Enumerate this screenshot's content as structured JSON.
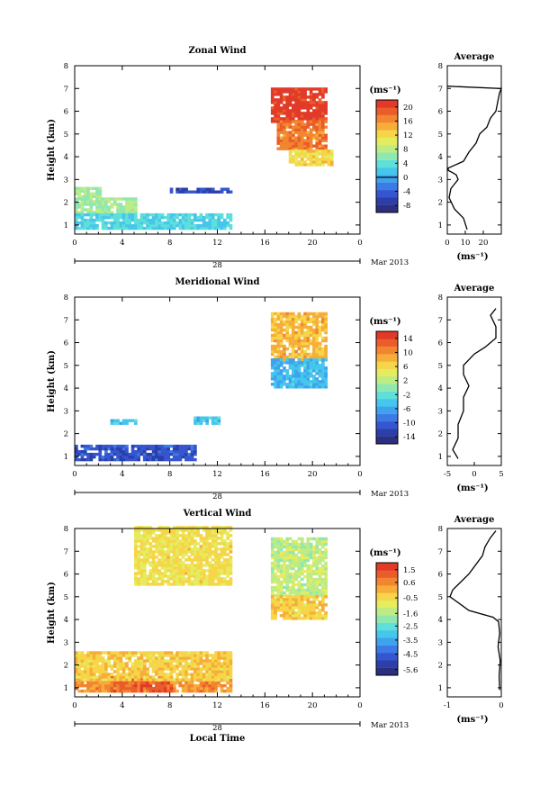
{
  "x_axis_label": "Local Time",
  "date_day": "28",
  "date_month": "Mar 2013",
  "time_ticks": [
    0,
    4,
    8,
    12,
    16,
    20,
    0
  ],
  "height_label": "Height (km)",
  "panels": [
    {
      "title": "Zonal Wind",
      "unit": "(ms⁻¹)",
      "colorbar": {
        "labels": [
          "20",
          "16",
          "12",
          "8",
          "4",
          "0",
          "-4",
          "-8"
        ],
        "min": -10,
        "max": 22,
        "zero_line": true
      },
      "average": {
        "title": "Average",
        "unit": "(ms⁻¹)",
        "xticks": [
          "0",
          "10",
          "20"
        ],
        "xlim": [
          0,
          30
        ]
      }
    },
    {
      "title": "Meridional Wind",
      "unit": "(ms⁻¹)",
      "colorbar": {
        "labels": [
          "14",
          "10",
          "6",
          "2",
          "-2",
          "-6",
          "-10",
          "-14"
        ],
        "min": -16,
        "max": 16,
        "zero_line": true
      },
      "average": {
        "title": "Average",
        "unit": "(ms⁻¹)",
        "xticks": [
          "-5",
          "0",
          "5"
        ],
        "xlim": [
          -5,
          5
        ]
      }
    },
    {
      "title": "Vertical Wind",
      "unit": "(ms⁻¹)",
      "colorbar": {
        "labels": [
          "1.5",
          "0.6",
          "-0.5",
          "-1.6",
          "-2.5",
          "-3.5",
          "-4.5",
          "-5.6"
        ],
        "min": -6,
        "max": 2,
        "zero_line": false
      },
      "average": {
        "title": "Average",
        "unit": "(ms⁻¹)",
        "xticks": [
          "-1",
          "0"
        ],
        "xlim": [
          -1,
          0
        ]
      }
    }
  ],
  "chart_data": [
    {
      "type": "heatmap",
      "title": "Zonal Wind",
      "xlabel": "",
      "ylabel": "Height (km)",
      "xlim": [
        0,
        24
      ],
      "ylim": [
        0.6,
        8
      ],
      "colorbar_range": [
        -10,
        22
      ],
      "regions": [
        {
          "t": [
            0,
            2
          ],
          "h": [
            2.2,
            2.6
          ],
          "v": 7
        },
        {
          "t": [
            0,
            5
          ],
          "h": [
            1.5,
            2.2
          ],
          "v": 7
        },
        {
          "t": [
            0,
            13
          ],
          "h": [
            0.8,
            1.5
          ],
          "v": 3
        },
        {
          "t": [
            8,
            13
          ],
          "h": [
            2.4,
            2.6
          ],
          "v": -6
        },
        {
          "t": [
            16.5,
            21
          ],
          "h": [
            5.5,
            7
          ],
          "v": 21
        },
        {
          "t": [
            17,
            21
          ],
          "h": [
            4.3,
            5.5
          ],
          "v": 17
        },
        {
          "t": [
            18,
            21.5
          ],
          "h": [
            3.6,
            4.3
          ],
          "v": 12
        }
      ]
    },
    {
      "type": "line",
      "title": "Average",
      "xlabel": "(ms⁻¹)",
      "ylabel": "",
      "xlim": [
        0,
        30
      ],
      "ylim": [
        0.6,
        8
      ],
      "x": [
        11,
        9,
        4,
        1,
        2,
        4,
        6,
        5,
        3,
        0.5,
        0.5,
        9,
        12,
        16,
        18,
        22,
        24,
        27,
        28,
        29,
        30,
        0
      ],
      "y": [
        0.8,
        1.3,
        1.7,
        2.2,
        2.6,
        2.8,
        3.0,
        3.2,
        3.3,
        3.4,
        3.5,
        3.8,
        4.2,
        4.6,
        5.0,
        5.3,
        5.7,
        6.0,
        6.4,
        6.8,
        7.0,
        7.1
      ]
    },
    {
      "type": "heatmap",
      "title": "Meridional Wind",
      "xlabel": "",
      "ylabel": "Height (km)",
      "xlim": [
        0,
        24
      ],
      "ylim": [
        0.6,
        8
      ],
      "colorbar_range": [
        -16,
        16
      ],
      "regions": [
        {
          "t": [
            0,
            10
          ],
          "h": [
            0.8,
            1.5
          ],
          "v": -11
        },
        {
          "t": [
            3,
            5
          ],
          "h": [
            2.4,
            2.6
          ],
          "v": -4
        },
        {
          "t": [
            10,
            12
          ],
          "h": [
            2.4,
            2.7
          ],
          "v": -4
        },
        {
          "t": [
            16.5,
            21
          ],
          "h": [
            5.2,
            7.3
          ],
          "v": 8
        },
        {
          "t": [
            16.5,
            21
          ],
          "h": [
            4,
            5.2
          ],
          "v": -5
        }
      ]
    },
    {
      "type": "line",
      "title": "Average",
      "xlabel": "(ms⁻¹)",
      "ylabel": "",
      "xlim": [
        -5,
        5
      ],
      "ylim": [
        0.6,
        8
      ],
      "x": [
        -3,
        -4,
        -3,
        -3,
        -2,
        -2,
        -1,
        -2,
        -2,
        0,
        2,
        4,
        4,
        3,
        4
      ],
      "y": [
        0.9,
        1.3,
        1.8,
        2.4,
        3.0,
        3.6,
        4.1,
        4.6,
        5.0,
        5.5,
        5.8,
        6.2,
        6.7,
        7.2,
        7.5
      ]
    },
    {
      "type": "heatmap",
      "title": "Vertical Wind",
      "xlabel": "Local Time",
      "ylabel": "Height (km)",
      "xlim": [
        0,
        24
      ],
      "ylim": [
        0.6,
        8
      ],
      "colorbar_range": [
        -6,
        2
      ],
      "regions": [
        {
          "t": [
            0,
            13
          ],
          "h": [
            0.8,
            1.3
          ],
          "v": 0.5
        },
        {
          "t": [
            3,
            8
          ],
          "h": [
            0.8,
            1.4
          ],
          "v": 1.2
        },
        {
          "t": [
            0,
            13
          ],
          "h": [
            1.3,
            2.6
          ],
          "v": -0.3
        },
        {
          "t": [
            5,
            13
          ],
          "h": [
            5.5,
            8
          ],
          "v": -0.6
        },
        {
          "t": [
            16.5,
            21
          ],
          "h": [
            5,
            7.5
          ],
          "v": -1.4
        },
        {
          "t": [
            16.5,
            21
          ],
          "h": [
            4,
            5
          ],
          "v": -0.3
        }
      ]
    },
    {
      "type": "line",
      "title": "Average",
      "xlabel": "(ms⁻¹)",
      "ylabel": "",
      "xlim": [
        -1,
        0
      ],
      "ylim": [
        0.6,
        8
      ],
      "x": [
        -0.03,
        -0.04,
        -0.02,
        -0.06,
        -0.03,
        -0.05,
        -0.15,
        -0.6,
        -0.95,
        -0.9,
        -0.6,
        -0.35,
        -0.3,
        -0.2,
        -0.1
      ],
      "y": [
        0.9,
        1.5,
        2.2,
        2.8,
        3.4,
        3.9,
        4.1,
        4.4,
        5.0,
        5.3,
        6.0,
        6.8,
        7.2,
        7.6,
        7.9
      ]
    }
  ]
}
